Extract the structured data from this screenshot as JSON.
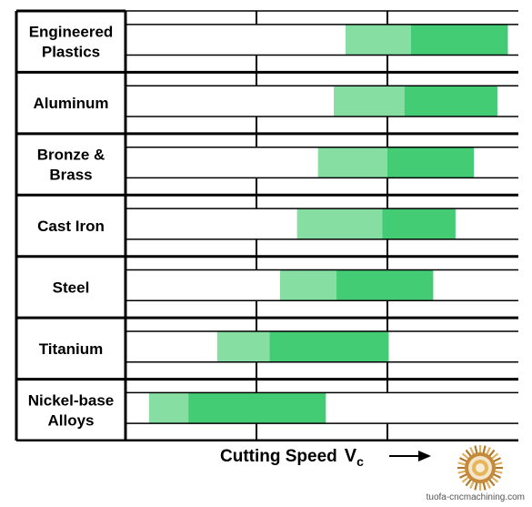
{
  "chart_data": {
    "type": "bar",
    "title": "",
    "xlabel": "Cutting Speed",
    "x_symbol": "V",
    "x_symbol_subscript": "c",
    "ylabel": "",
    "x_tick_labels": [],
    "grid": true,
    "legend": "none",
    "categories": [
      {
        "label": [
          "Engineered",
          "Plastics"
        ]
      },
      {
        "label": [
          "Aluminum"
        ]
      },
      {
        "label": [
          "Bronze &",
          "Brass"
        ]
      },
      {
        "label": [
          "Cast Iron"
        ]
      },
      {
        "label": [
          "Steel"
        ]
      },
      {
        "label": [
          "Titanium"
        ]
      },
      {
        "label": [
          "Nickel-base",
          "Alloys"
        ]
      }
    ],
    "xlim": [
      0,
      3
    ],
    "bars": [
      {
        "start": 1.68,
        "mid": 2.18,
        "end": 2.92
      },
      {
        "start": 1.59,
        "mid": 2.13,
        "end": 2.84
      },
      {
        "start": 1.47,
        "mid": 2.0,
        "end": 2.66
      },
      {
        "start": 1.31,
        "mid": 1.96,
        "end": 2.52
      },
      {
        "start": 1.18,
        "mid": 1.61,
        "end": 2.35
      },
      {
        "start": 0.7,
        "mid": 1.1,
        "end": 2.01
      },
      {
        "start": 0.18,
        "mid": 0.48,
        "end": 1.53
      }
    ],
    "colors": {
      "light": "#86dea2",
      "dark": "#44cc75",
      "line": "#000000"
    }
  },
  "logo_name": "tuofa-logo-icon",
  "watermark": "tuofa-cncmachining.com"
}
